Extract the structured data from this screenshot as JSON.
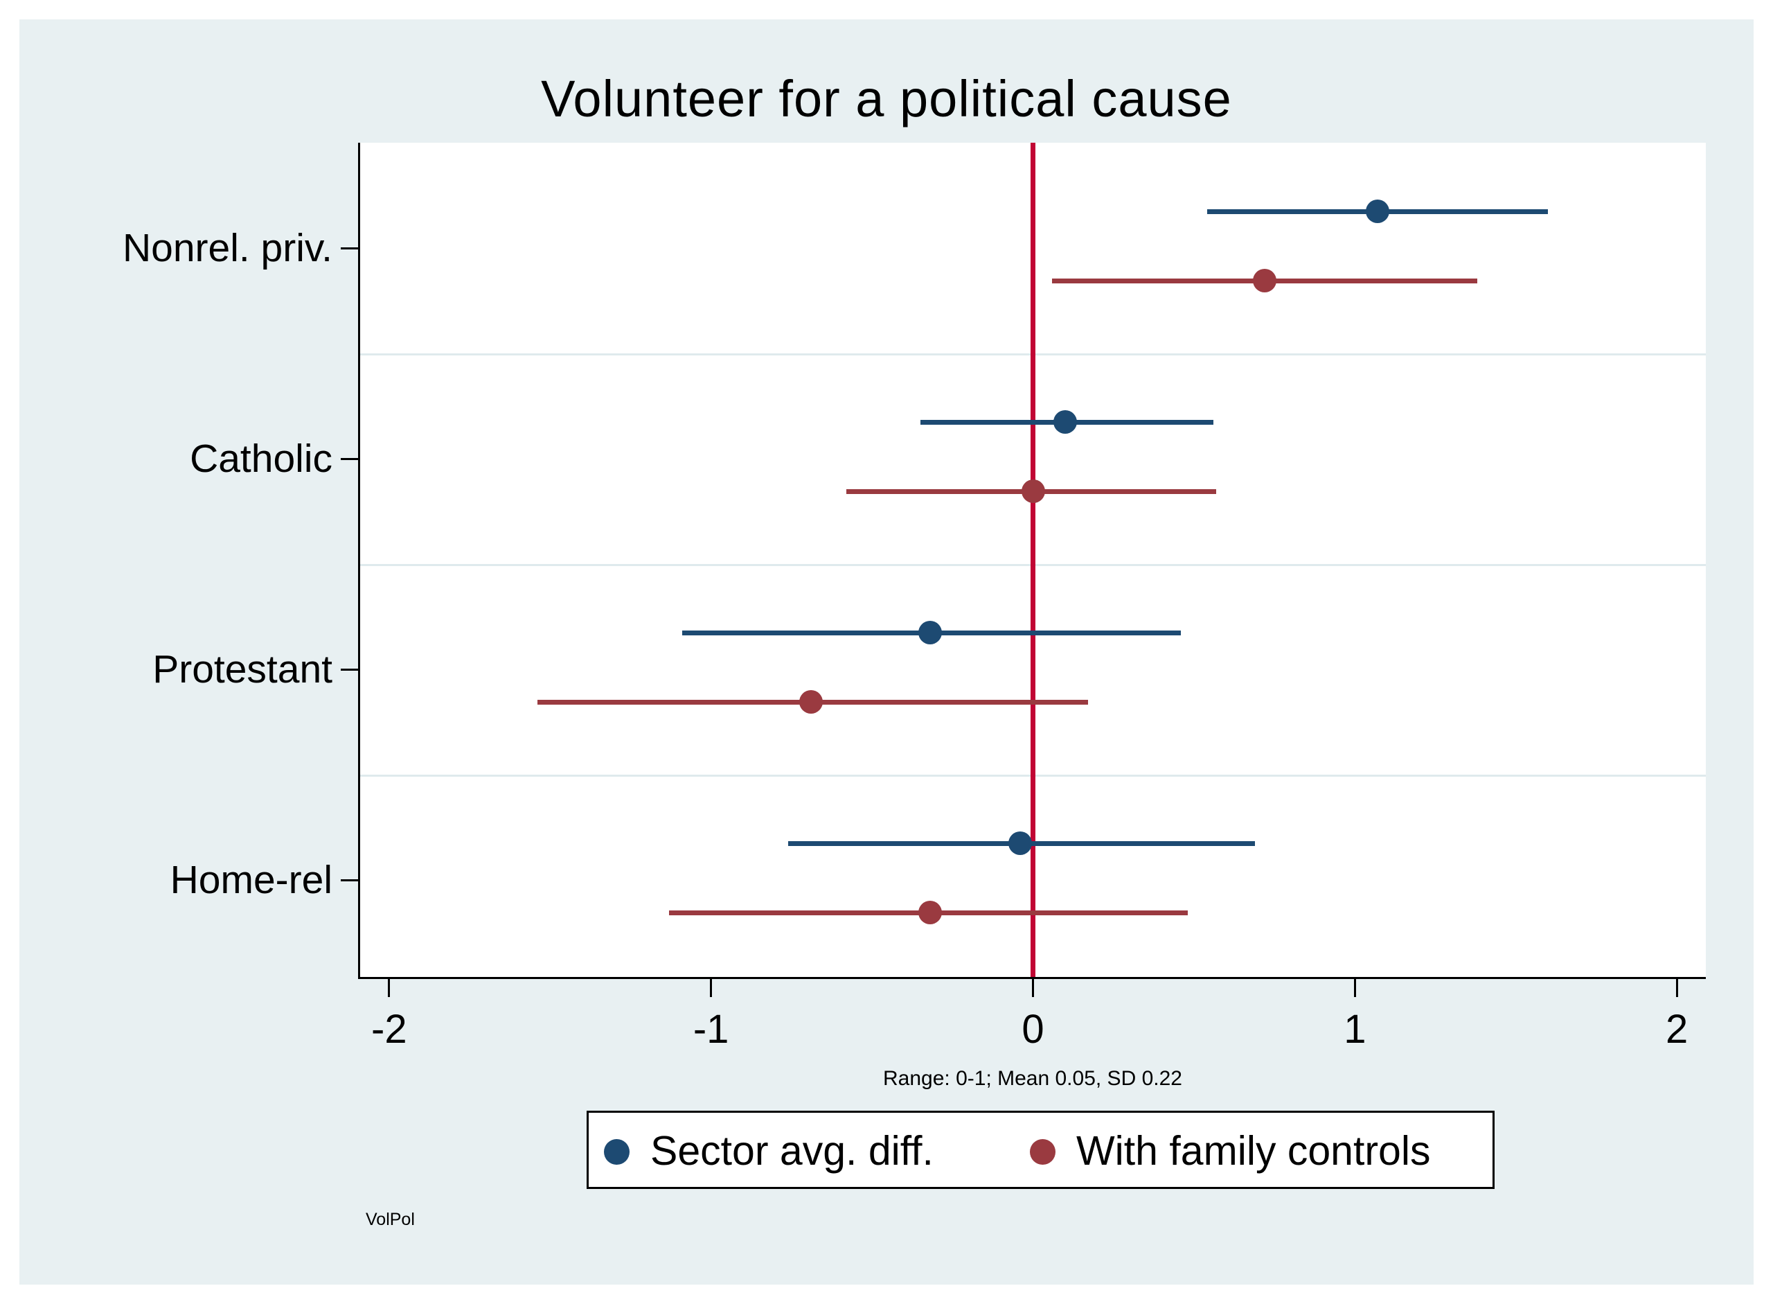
{
  "figure": {
    "title": "Volunteer for a political cause",
    "note": "Range: 0-1; Mean 0.05, SD 0.22",
    "watermark": "VolPol"
  },
  "colors": {
    "panel_bg": "#e8f0f2",
    "plot_bg": "#ffffff",
    "axis": "#000000",
    "category_separator": "#dfeaed",
    "zero_line": "#c10534",
    "navy": "#1d4a72",
    "maroon": "#9a3a40"
  },
  "chart_data": {
    "type": "scatter",
    "subtype": "coefficient-dot-plot-with-ci",
    "title": "Volunteer for a political cause",
    "categories": [
      "Nonrel. priv.",
      "Catholic",
      "Protestant",
      "Home-rel"
    ],
    "series": [
      {
        "name": "Sector avg. diff.",
        "color": "#1d4a72",
        "estimates": [
          1.07,
          0.1,
          -0.32,
          -0.04
        ],
        "ci_low": [
          0.54,
          -0.35,
          -1.09,
          -0.76
        ],
        "ci_high": [
          1.6,
          0.56,
          0.46,
          0.69
        ]
      },
      {
        "name": "With family controls",
        "color": "#9a3a40",
        "estimates": [
          0.72,
          0.0,
          -0.69,
          -0.32
        ],
        "ci_low": [
          0.06,
          -0.58,
          -1.54,
          -1.13
        ],
        "ci_high": [
          1.38,
          0.57,
          0.17,
          0.48
        ]
      }
    ],
    "xticks": [
      "-2",
      "-1",
      "0",
      "1",
      "2"
    ],
    "xtick_values": [
      -2,
      -1,
      0,
      1,
      2
    ],
    "xlim": [
      -2.09,
      2.09
    ],
    "ref_line_x": 0,
    "xlabel": "",
    "ylabel": "",
    "grid": "category-separators-only",
    "legend_position": "bottom-center",
    "note": "Range: 0-1; Mean 0.05, SD 0.22"
  },
  "legend": {
    "items": [
      {
        "label": "Sector avg. diff.",
        "color": "#1d4a72"
      },
      {
        "label": "With family controls",
        "color": "#9a3a40"
      }
    ]
  }
}
